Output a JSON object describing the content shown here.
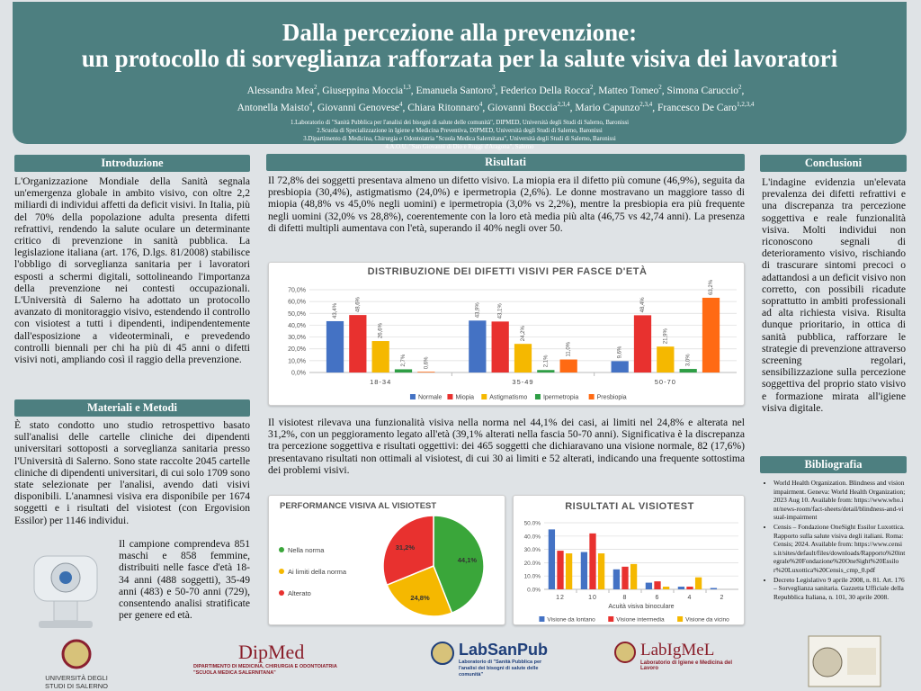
{
  "header": {
    "title_line1": "Dalla percezione alla prevenzione:",
    "title_line2": "un protocollo di sorveglianza rafforzata per la salute visiva dei lavoratori",
    "authors": [
      {
        "name": "Alessandra Mea",
        "sup": "2"
      },
      {
        "name": "Giuseppina Moccia",
        "sup": "1,3"
      },
      {
        "name": "Emanuela Santoro",
        "sup": "3"
      },
      {
        "name": "Federico Della Rocca",
        "sup": "2"
      },
      {
        "name": "Matteo Tomeo",
        "sup": "2"
      },
      {
        "name": "Simona Caruccio",
        "sup": "2"
      },
      {
        "name": "Antonella Maisto",
        "sup": "4"
      },
      {
        "name": "Giovanni Genovese",
        "sup": "4"
      },
      {
        "name": "Chiara Ritonnaro",
        "sup": "4"
      },
      {
        "name": "Giovanni Boccia",
        "sup": "2,3,4"
      },
      {
        "name": "Mario Capunzo",
        "sup": "2,3,4"
      },
      {
        "name": "Francesco De Caro",
        "sup": "1,2,3,4"
      }
    ],
    "affiliations": [
      "1.Laboratorio di \"Sanità Pubblica per l'analisi dei bisogni di salute delle comunità\", DIPMED, Università degli Studi di Salerno, Baronissi",
      "2.Scuola di Specializzazione in Igiene e Medicina Preventiva, DIPMED, Università degli Studi di Salerno, Baronissi",
      "3.Dipartimento di Medicina, Chirurgia e Odontoiatria \"Scuola Medica Salernitana\", Università degli Studi di Salerno, Baronissi",
      "4.A.O.U. \"San Giovanni di Dio e Ruggi d'Aragona\", Salerno"
    ]
  },
  "introduction": {
    "heading": "Introduzione",
    "text": "L'Organizzazione Mondiale della Sanità segnala un'emergenza globale in ambito visivo, con oltre 2,2 miliardi di individui affetti da deficit visivi. In Italia, più del 70% della popolazione adulta presenta difetti refrattivi, rendendo la salute oculare un determinante critico di prevenzione in sanità pubblica. La legislazione italiana (art. 176, D.lgs. 81/2008) stabilisce l'obbligo di sorveglianza sanitaria per i lavoratori esposti a schermi digitali, sottolineando l'importanza della prevenzione nei contesti occupazionali. L'Università di Salerno ha adottato un protocollo avanzato di monitoraggio visivo, estendendo il controllo con visiotest a tutti i dipendenti, indipendentemente dall'esposizione a videoterminali, e prevedendo controlli biennali per chi ha più di 45 anni o difetti visivi noti, ampliando così il raggio della prevenzione."
  },
  "methods": {
    "heading": "Materiali e Metodi",
    "text1": "È stato condotto uno studio retrospettivo basato sull'analisi delle cartelle cliniche dei dipendenti universitari sottoposti a sorveglianza sanitaria presso l'Università di Salerno. Sono state raccolte 2045 cartelle cliniche di dipendenti universitari, di cui solo 1709 sono state selezionate per l'analisi, avendo dati visivi disponibili. L'anamnesi visiva era disponibile per 1674 soggetti e i risultati del visiotest (con Ergovision Essilor) per 1146 individui.",
    "text2": "Il campione comprendeva 851 maschi e 858 femmine, distribuiti nelle fasce d'età 18-34 anni (488 soggetti), 35-49 anni (483) e 50-70 anni (729), consentendo analisi stratificate per genere ed età."
  },
  "results": {
    "heading": "Risultati",
    "text1": "Il 72,8% dei soggetti presentava almeno un difetto visivo. La miopia era il difetto più comune (46,9%), seguita da presbiopia (30,4%), astigmatismo (24,0%) e ipermetropia (2,6%). Le donne mostravano un maggiore tasso di miopia (48,8% vs 45,0% negli uomini) e ipermetropia (3,0% vs 2,2%), mentre la presbiopia era più frequente negli uomini (32,0% vs 28,8%), coerentemente con la loro età media più alta (46,75 vs 42,74 anni). La presenza di difetti multipli aumentava con l'età, superando il 40% negli over 50.",
    "text2": "Il visiotest rilevava una funzionalità visiva nella norma nel 44,1% dei casi, ai limiti nel 24,8% e alterata nel 31,2%, con un peggioramento legato all'età (39,1% alterati nella fascia 50-70 anni). Significativa è la discrepanza tra percezione soggettiva e risultati oggettivi: dei 465 soggetti che dichiaravano una visione normale, 82 (17,6%) presentavano risultati non ottimali al visiotest, di cui 30 ai limiti e 52 alterati, indicando una frequente sottostima dei problemi visivi."
  },
  "chart_data": [
    {
      "type": "bar",
      "title": "DISTRIBUZIONE DEI DIFETTI VISIVI PER FASCE D'ETÀ",
      "categories": [
        "18-34",
        "35-49",
        "50-70"
      ],
      "series": [
        {
          "name": "Normale",
          "color": "#4472c4",
          "values": [
            43.4,
            43.9,
            9.6
          ],
          "value_labels": [
            "43,4%",
            "43,9%",
            "9,6%"
          ]
        },
        {
          "name": "Miopia",
          "color": "#e8312f",
          "values": [
            48.6,
            43.1,
            48.4
          ],
          "value_labels": [
            "48,6%",
            "43,1%",
            "48,4%"
          ]
        },
        {
          "name": "Astigmatismo",
          "color": "#f5b800",
          "values": [
            26.6,
            24.2,
            21.9
          ],
          "value_labels": [
            "26,6%",
            "24,2%",
            "21,9%"
          ]
        },
        {
          "name": "Ipermetropia",
          "color": "#2e9e45",
          "values": [
            2.7,
            2.1,
            3.0
          ],
          "value_labels": [
            "2,7%",
            "2,1%",
            "3,0%"
          ]
        },
        {
          "name": "Presbiopia",
          "color": "#ff6a13",
          "values": [
            0.6,
            11.0,
            63.2
          ],
          "value_labels": [
            "0,6%",
            "11,0%",
            "63,2%"
          ]
        }
      ],
      "ylim": [
        0,
        70
      ],
      "yticks": [
        {
          "value": 0,
          "label": "0,0%"
        },
        {
          "value": 10,
          "label": "10,0%"
        },
        {
          "value": 20,
          "label": "20,0%"
        },
        {
          "value": 30,
          "label": "30,0%"
        },
        {
          "value": 40,
          "label": "40,0%"
        },
        {
          "value": 50,
          "label": "50,0%"
        },
        {
          "value": 60,
          "label": "60,0%"
        },
        {
          "value": 70,
          "label": "70,0%"
        }
      ],
      "grid": true
    },
    {
      "type": "pie",
      "title": "PERFORMANCE VISIVA AL VISIOTEST",
      "categories": [
        "Nella norma",
        "Ai limiti della norma",
        "Alterato"
      ],
      "values": [
        44.1,
        24.8,
        31.2
      ],
      "value_labels": [
        "44,1%",
        "24,8%",
        "31,2%"
      ],
      "colors": [
        "#3aa63a",
        "#f5b800",
        "#e8312f"
      ]
    },
    {
      "type": "bar",
      "title": "RISULTATI AL VISIOTEST",
      "categories": [
        "12",
        "10",
        "8",
        "6",
        "4",
        "2"
      ],
      "x_label": "Acuità visiva binoculare",
      "series": [
        {
          "name": "Visione da lontano",
          "color": "#4472c4",
          "values": [
            45,
            28,
            15,
            5,
            2,
            1
          ]
        },
        {
          "name": "Visione intermedia",
          "color": "#e8312f",
          "values": [
            29,
            42,
            17,
            6,
            2,
            0
          ]
        },
        {
          "name": "Visione da vicino",
          "color": "#f5b800",
          "values": [
            27,
            27,
            19,
            2,
            9,
            0
          ]
        }
      ],
      "ylim": [
        0,
        50
      ],
      "yticks": [
        {
          "value": 0,
          "label": "0.0%"
        },
        {
          "value": 10,
          "label": "10.0%"
        },
        {
          "value": 20,
          "label": "20.0%"
        },
        {
          "value": 30,
          "label": "30.0%"
        },
        {
          "value": 40,
          "label": "40.0%"
        },
        {
          "value": 50,
          "label": "50.0%"
        }
      ],
      "grid": true
    }
  ],
  "conclusions": {
    "heading": "Conclusioni",
    "text": "L'indagine evidenzia un'elevata prevalenza dei difetti refrattivi e una discrepanza tra percezione soggettiva e reale funzionalità visiva. Molti individui non riconoscono segnali di deterioramento visivo, rischiando di trascurare sintomi precoci o adattandosi a un deficit visivo non corretto, con possibili ricadute soprattutto in ambiti professionali ad alta richiesta visiva. Risulta dunque prioritario, in ottica di sanità pubblica, rafforzare le strategie di prevenzione attraverso screening regolari, sensibilizzazione sulla percezione soggettiva del proprio stato visivo e formazione mirata all'igiene visiva digitale."
  },
  "bibliography": {
    "heading": "Bibliografia",
    "items": [
      "World Health Organization. Blindness and vision impairment. Geneva: World Health Organization; 2023 Aug 10. Available from: https://www.who.int/news-room/fact-sheets/detail/blindness-and-visual-impairment",
      "Censis – Fondazione OneSight Essilor Luxottica. Rapporto sulla salute visiva degli italiani. Roma: Censis; 2024. Available from: https://www.censis.it/sites/default/files/downloads/Rapporto%20integrale%20Fondazione%20OneSight%20Essilor%20Luxottica%20Censis_cmp_0.pdf",
      "Decreto Legislativo 9 aprile 2008, n. 81. Art. 176 – Sorveglianza sanitaria. Gazzetta Ufficiale della Repubblica Italiana, n. 101, 30 aprile 2008."
    ]
  },
  "footer": {
    "unisa": "UNIVERSITÀ DEGLI STUDI DI SALERNO",
    "dipmed": "DipMed",
    "dipmed_sub": "DIPARTIMENTO DI MEDICINA, CHIRURGIA E ODONTOIATRIA \"SCUOLA MEDICA SALERNITANA\"",
    "labsanpub": "LabSanPub",
    "labsanpub_sub": "Laboratorio di \"Sanità Pubblica per l'analisi dei bisogni di salute delle comunità\"",
    "labigmel": "LabIgMeL",
    "labigmel_sub": "Laboratorio di Igiene e Medicina del Lavoro"
  }
}
